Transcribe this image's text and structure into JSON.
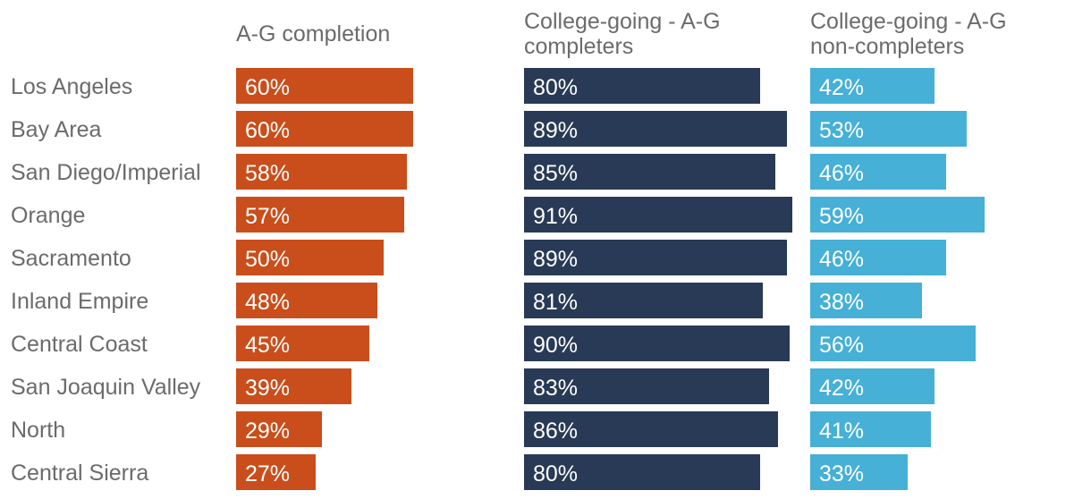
{
  "chart_data": {
    "type": "bar",
    "orientation": "horizontal",
    "categories": [
      "Los Angeles",
      "Bay Area",
      "San Diego/Imperial",
      "Orange",
      "Sacramento",
      "Inland Empire",
      "Central Coast",
      "San Joaquin Valley",
      "North",
      "Central Sierra"
    ],
    "series": [
      {
        "name": "A-G completion",
        "color": "#c94e1b",
        "values": [
          60,
          60,
          58,
          57,
          50,
          48,
          45,
          39,
          29,
          27
        ],
        "labels": [
          "60%",
          "60%",
          "58%",
          "57%",
          "50%",
          "48%",
          "45%",
          "39%",
          "29%",
          "27%"
        ]
      },
      {
        "name": "College-going - A-G completers",
        "name_lines": [
          "College-going - A-G",
          "completers"
        ],
        "color": "#283a55",
        "values": [
          80,
          89,
          85,
          91,
          89,
          81,
          90,
          83,
          86,
          80
        ],
        "labels": [
          "80%",
          "89%",
          "85%",
          "91%",
          "89%",
          "81%",
          "90%",
          "83%",
          "86%",
          "80%"
        ]
      },
      {
        "name": "College-going - A-G non-completers",
        "name_lines": [
          "College-going - A-G",
          "non-completers"
        ],
        "color": "#46b0d6",
        "values": [
          42,
          53,
          46,
          59,
          46,
          38,
          56,
          42,
          41,
          33
        ],
        "labels": [
          "42%",
          "53%",
          "46%",
          "59%",
          "46%",
          "38%",
          "56%",
          "42%",
          "41%",
          "33%"
        ]
      }
    ],
    "value_unit": "%",
    "xlim": [
      0,
      100
    ],
    "grid": false,
    "legend": "column headers"
  }
}
